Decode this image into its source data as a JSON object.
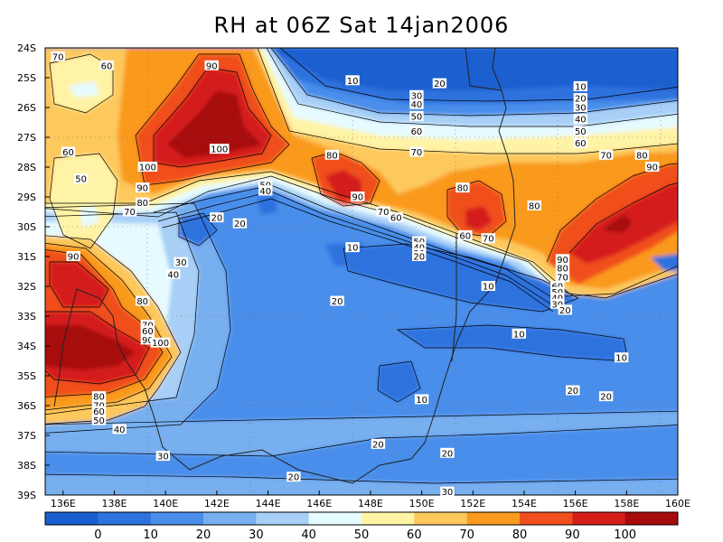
{
  "title": "RH at 06Z Sat 14jan2006",
  "chart_data": {
    "type": "heatmap",
    "variable": "RH",
    "title": "RH at 06Z Sat 14jan2006",
    "x_ticks": [
      "136E",
      "138E",
      "140E",
      "142E",
      "144E",
      "146E",
      "148E",
      "150E",
      "152E",
      "154E",
      "156E",
      "158E",
      "160E"
    ],
    "x_tick_values": [
      136,
      138,
      140,
      142,
      144,
      146,
      148,
      150,
      152,
      154,
      156,
      158,
      160
    ],
    "y_ticks": [
      "24S",
      "25S",
      "26S",
      "27S",
      "28S",
      "29S",
      "30S",
      "31S",
      "32S",
      "33S",
      "34S",
      "35S",
      "36S",
      "37S",
      "38S",
      "39S"
    ],
    "y_tick_values": [
      -24,
      -25,
      -26,
      -27,
      -28,
      -29,
      -30,
      -31,
      -32,
      -33,
      -34,
      -35,
      -36,
      -37,
      -38,
      -39
    ],
    "xlim": [
      135.3,
      160
    ],
    "ylim": [
      -39,
      -24
    ],
    "colorbar": {
      "labels": [
        "0",
        "10",
        "20",
        "30",
        "40",
        "50",
        "60",
        "70",
        "80",
        "90",
        "100"
      ],
      "colors": [
        "#1a5fcf",
        "#2d72de",
        "#4a8eea",
        "#78afef",
        "#a8d0f7",
        "#e6fbff",
        "#fff3a6",
        "#fdc85c",
        "#fa9a1f",
        "#f0501e",
        "#d51e1a",
        "#a70b0b"
      ]
    },
    "contour_labels": [
      {
        "text": "70",
        "lon": 135.8,
        "lat": -24.3
      },
      {
        "text": "60",
        "lon": 137.7,
        "lat": -24.6
      },
      {
        "text": "90",
        "lon": 141.8,
        "lat": -24.6
      },
      {
        "text": "100",
        "lon": 142.1,
        "lat": -27.4
      },
      {
        "text": "100",
        "lon": 139.3,
        "lat": -28
      },
      {
        "text": "90",
        "lon": 139.1,
        "lat": -28.7
      },
      {
        "text": "80",
        "lon": 139.1,
        "lat": -29.2
      },
      {
        "text": "70",
        "lon": 138.6,
        "lat": -29.5
      },
      {
        "text": "60",
        "lon": 136.2,
        "lat": -27.5
      },
      {
        "text": "50",
        "lon": 136.7,
        "lat": -28.4
      },
      {
        "text": "10",
        "lon": 147.3,
        "lat": -25.1
      },
      {
        "text": "20",
        "lon": 150.7,
        "lat": -25.2
      },
      {
        "text": "30",
        "lon": 149.8,
        "lat": -25.6
      },
      {
        "text": "40",
        "lon": 149.8,
        "lat": -25.9
      },
      {
        "text": "50",
        "lon": 149.8,
        "lat": -26.3
      },
      {
        "text": "60",
        "lon": 149.8,
        "lat": -26.8
      },
      {
        "text": "70",
        "lon": 149.8,
        "lat": -27.5
      },
      {
        "text": "80",
        "lon": 146.5,
        "lat": -27.6
      },
      {
        "text": "90",
        "lon": 147.5,
        "lat": -29
      },
      {
        "text": "70",
        "lon": 148.5,
        "lat": -29.5
      },
      {
        "text": "60",
        "lon": 149,
        "lat": -29.7
      },
      {
        "text": "80",
        "lon": 151.6,
        "lat": -28.7
      },
      {
        "text": "70",
        "lon": 152.6,
        "lat": -30.4
      },
      {
        "text": "60",
        "lon": 151.7,
        "lat": -30.3
      },
      {
        "text": "50",
        "lon": 149.9,
        "lat": -30.5
      },
      {
        "text": "40",
        "lon": 149.9,
        "lat": -30.7
      },
      {
        "text": "30",
        "lon": 149.9,
        "lat": -30.9
      },
      {
        "text": "20",
        "lon": 149.9,
        "lat": -31
      },
      {
        "text": "10",
        "lon": 147.3,
        "lat": -30.7
      },
      {
        "text": "10",
        "lon": 152.6,
        "lat": -32
      },
      {
        "text": "50",
        "lon": 143.9,
        "lat": -28.6
      },
      {
        "text": "40",
        "lon": 143.9,
        "lat": -28.8
      },
      {
        "text": "20",
        "lon": 142,
        "lat": -29.7
      },
      {
        "text": "20",
        "lon": 142.9,
        "lat": -29.9
      },
      {
        "text": "30",
        "lon": 140.6,
        "lat": -31.2
      },
      {
        "text": "40",
        "lon": 140.3,
        "lat": -31.6
      },
      {
        "text": "20",
        "lon": 146.7,
        "lat": -32.5
      },
      {
        "text": "10",
        "lon": 156.2,
        "lat": -25.3
      },
      {
        "text": "20",
        "lon": 156.2,
        "lat": -25.7
      },
      {
        "text": "30",
        "lon": 156.2,
        "lat": -26
      },
      {
        "text": "40",
        "lon": 156.2,
        "lat": -26.4
      },
      {
        "text": "50",
        "lon": 156.2,
        "lat": -26.8
      },
      {
        "text": "60",
        "lon": 156.2,
        "lat": -27.2
      },
      {
        "text": "70",
        "lon": 157.2,
        "lat": -27.6
      },
      {
        "text": "80",
        "lon": 158.6,
        "lat": -27.6
      },
      {
        "text": "90",
        "lon": 159,
        "lat": -28
      },
      {
        "text": "80",
        "lon": 154.4,
        "lat": -29.3
      },
      {
        "text": "90",
        "lon": 155.5,
        "lat": -31.1
      },
      {
        "text": "80",
        "lon": 155.5,
        "lat": -31.4
      },
      {
        "text": "70",
        "lon": 155.5,
        "lat": -31.7
      },
      {
        "text": "60",
        "lon": 155.3,
        "lat": -32
      },
      {
        "text": "50",
        "lon": 155.3,
        "lat": -32.2
      },
      {
        "text": "40",
        "lon": 155.3,
        "lat": -32.4
      },
      {
        "text": "30",
        "lon": 155.3,
        "lat": -32.6
      },
      {
        "text": "20",
        "lon": 155.6,
        "lat": -32.8
      },
      {
        "text": "10",
        "lon": 153.8,
        "lat": -33.6
      },
      {
        "text": "10",
        "lon": 157.8,
        "lat": -34.4
      },
      {
        "text": "10",
        "lon": 150,
        "lat": -35.8
      },
      {
        "text": "20",
        "lon": 155.9,
        "lat": -35.5
      },
      {
        "text": "20",
        "lon": 157.2,
        "lat": -35.7
      },
      {
        "text": "20",
        "lon": 148.3,
        "lat": -37.3
      },
      {
        "text": "20",
        "lon": 151,
        "lat": -37.6
      },
      {
        "text": "30",
        "lon": 139.9,
        "lat": -37.7
      },
      {
        "text": "20",
        "lon": 145,
        "lat": -38.4
      },
      {
        "text": "30",
        "lon": 151,
        "lat": -38.9
      },
      {
        "text": "80",
        "lon": 139.1,
        "lat": -32.5
      },
      {
        "text": "70",
        "lon": 139.3,
        "lat": -33.3
      },
      {
        "text": "60",
        "lon": 139.3,
        "lat": -33.5
      },
      {
        "text": "90",
        "lon": 139.3,
        "lat": -33.8
      },
      {
        "text": "100",
        "lon": 139.8,
        "lat": -33.9
      },
      {
        "text": "90",
        "lon": 136.4,
        "lat": -31
      },
      {
        "text": "80",
        "lon": 137.4,
        "lat": -35.7
      },
      {
        "text": "70",
        "lon": 137.4,
        "lat": -36
      },
      {
        "text": "60",
        "lon": 137.4,
        "lat": -36.2
      },
      {
        "text": "50",
        "lon": 137.4,
        "lat": -36.5
      },
      {
        "text": "40",
        "lon": 138.2,
        "lat": -36.8
      }
    ]
  }
}
